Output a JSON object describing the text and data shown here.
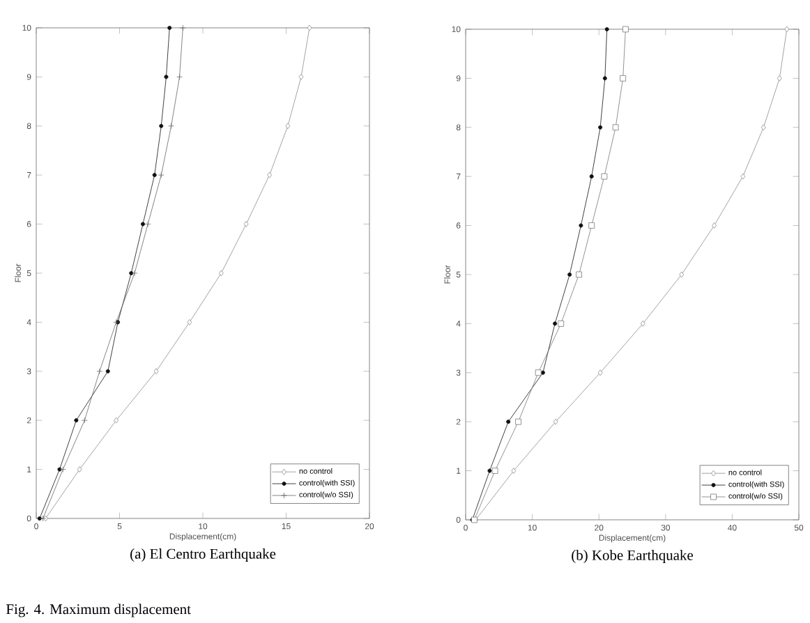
{
  "chart_data": [
    {
      "type": "line",
      "title": "(a)  El Centro  Earthquake",
      "xlabel": "Displacement(cm)",
      "ylabel": "Floor",
      "xlim": [
        0,
        20
      ],
      "xticks": [
        0,
        5,
        10,
        15,
        20
      ],
      "ylim": [
        0,
        10
      ],
      "yticks": [
        0,
        1,
        2,
        3,
        4,
        5,
        6,
        7,
        8,
        9,
        10
      ],
      "legend": "bottom right",
      "grid": false,
      "series": [
        {
          "name": "no control",
          "color": "#8c8c8c",
          "marker": "diamond",
          "x": [
            0.56,
            2.6,
            4.8,
            7.2,
            9.2,
            11.1,
            12.6,
            14.0,
            15.1,
            15.9,
            16.4
          ],
          "values": [
            0,
            1,
            2,
            3,
            4,
            5,
            6,
            7,
            8,
            9,
            10
          ]
        },
        {
          "name": "control(with SSI)",
          "color": "#111111",
          "marker": "circle",
          "x": [
            0.2,
            1.4,
            2.4,
            4.3,
            4.9,
            5.7,
            6.4,
            7.1,
            7.5,
            7.8,
            8.0
          ],
          "values": [
            0,
            1,
            2,
            3,
            4,
            5,
            6,
            7,
            8,
            9,
            10
          ]
        },
        {
          "name": "control(w/o SSI)",
          "color": "#666666",
          "marker": "cross",
          "x": [
            0.4,
            1.6,
            2.9,
            3.8,
            4.8,
            5.9,
            6.7,
            7.5,
            8.1,
            8.6,
            8.8
          ],
          "values": [
            0,
            1,
            2,
            3,
            4,
            5,
            6,
            7,
            8,
            9,
            10
          ]
        }
      ],
      "annotations": [
        "Fig. 4. Maximum displacement"
      ]
    },
    {
      "type": "line",
      "title": "(b)  Kobe  Earthquake",
      "xlabel": "Displacement(cm)",
      "ylabel": "Floor",
      "xlim": [
        0,
        50
      ],
      "xticks": [
        0,
        10,
        20,
        30,
        40,
        50
      ],
      "ylim": [
        0,
        10
      ],
      "yticks": [
        0,
        1,
        2,
        3,
        4,
        5,
        6,
        7,
        8,
        9,
        10
      ],
      "legend": "bottom right",
      "grid": false,
      "series": [
        {
          "name": "no control",
          "color": "#8c8c8c",
          "marker": "diamond",
          "x": [
            1.5,
            7.2,
            13.5,
            20.2,
            26.6,
            32.4,
            37.3,
            41.6,
            44.7,
            47.1,
            48.2
          ],
          "values": [
            0,
            1,
            2,
            3,
            4,
            5,
            6,
            7,
            8,
            9,
            10
          ]
        },
        {
          "name": "control(with SSI)",
          "color": "#111111",
          "marker": "circle",
          "x": [
            1.0,
            3.6,
            6.4,
            11.6,
            13.4,
            15.6,
            17.3,
            18.9,
            20.2,
            20.9,
            21.2
          ],
          "values": [
            0,
            1,
            2,
            3,
            4,
            5,
            6,
            7,
            8,
            9,
            10
          ]
        },
        {
          "name": "control(w/o SSI)",
          "color": "#777777",
          "marker": "square",
          "x": [
            1.3,
            4.4,
            7.9,
            10.9,
            14.3,
            17.0,
            18.9,
            20.8,
            22.5,
            23.6,
            24.0
          ],
          "values": [
            0,
            1,
            2,
            3,
            4,
            5,
            6,
            7,
            8,
            9,
            10
          ]
        }
      ]
    }
  ]
}
